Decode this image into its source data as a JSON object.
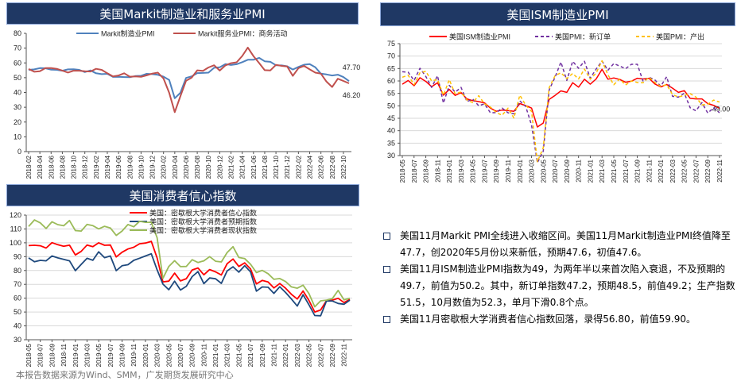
{
  "chart_data": [
    {
      "type": "line",
      "title": "美国Markit制造业和服务业PMI",
      "ylim": [
        0,
        80
      ],
      "yticks": [
        0,
        10,
        20,
        30,
        40,
        50,
        60,
        70,
        80
      ],
      "x_start": "2018-02",
      "xtick_labels": [
        "2018-02",
        "2018-04",
        "2018-06",
        "2018-08",
        "2018-10",
        "2018-12",
        "2019-02",
        "2019-04",
        "2019-06",
        "2019-08",
        "2019-10",
        "2019-12",
        "2020-02",
        "2020-04",
        "2020-06",
        "2020-08",
        "2020-10",
        "2020-12",
        "2021-02",
        "2021-04",
        "2021-06",
        "2021-08",
        "2021-10",
        "2021-12",
        "2022-02",
        "2022-04",
        "2022-06",
        "2022-08",
        "2022-10"
      ],
      "legend_placement": "top-center",
      "series": [
        {
          "name": "Markit制造业PMI",
          "color": "#4f81bd",
          "dash": "",
          "values": [
            55.3,
            55.6,
            56.5,
            56.4,
            55.4,
            55.3,
            54.7,
            55.6,
            55.7,
            55.3,
            53.8,
            54.9,
            53.0,
            52.4,
            52.6,
            50.5,
            50.6,
            50.4,
            50.3,
            51.1,
            51.3,
            52.6,
            52.4,
            51.9,
            50.7,
            48.5,
            36.1,
            39.8,
            49.8,
            50.9,
            53.1,
            53.2,
            53.4,
            56.7,
            57.1,
            59.2,
            58.6,
            59.1,
            60.5,
            62.1,
            62.1,
            63.4,
            61.1,
            60.7,
            58.4,
            58.3,
            57.7,
            55.5,
            57.3,
            58.8,
            59.2,
            57.0,
            52.7,
            52.2,
            51.5,
            52.0,
            50.4,
            47.7
          ],
          "end_label": "47.70"
        },
        {
          "name": "Markit服务业PMI：商务活动",
          "color": "#c0504d",
          "dash": "",
          "values": [
            55.9,
            54.0,
            54.4,
            56.5,
            56.5,
            56.0,
            54.8,
            53.5,
            54.7,
            54.7,
            54.4,
            54.2,
            56.0,
            55.3,
            53.0,
            50.9,
            51.5,
            53.0,
            50.7,
            50.9,
            50.6,
            51.6,
            52.8,
            53.4,
            49.4,
            39.8,
            26.7,
            37.5,
            47.9,
            50.0,
            55.0,
            54.6,
            56.9,
            58.4,
            54.8,
            58.3,
            59.8,
            60.4,
            64.7,
            70.4,
            64.6,
            59.9,
            55.1,
            54.9,
            58.7,
            58.0,
            57.6,
            51.2,
            56.5,
            58.0,
            55.6,
            53.4,
            52.7,
            47.3,
            43.7,
            49.3,
            47.8,
            46.2
          ],
          "end_label": "46.20"
        }
      ]
    },
    {
      "type": "line",
      "title": "美国ISM制造业PMI",
      "ylim": [
        30,
        75
      ],
      "yticks": [
        30,
        35,
        40,
        45,
        50,
        55,
        60,
        65,
        70,
        75
      ],
      "x_start": "2018-05",
      "xtick_labels": [
        "2018-05",
        "2018-07",
        "2018-09",
        "2018-11",
        "2019-01",
        "2019-03",
        "2019-05",
        "2019-07",
        "2019-09",
        "2019-11",
        "2020-01",
        "2020-03",
        "2020-05",
        "2020-07",
        "2020-09",
        "2020-11",
        "2021-01",
        "2021-03",
        "2021-05",
        "2021-07",
        "2021-09",
        "2021-11",
        "2022-01",
        "2022-03",
        "2022-05",
        "2022-07",
        "2022-09",
        "2022-11"
      ],
      "legend_placement": "top-center",
      "series": [
        {
          "name": "美国ISM制造业PMI",
          "color": "#ff0000",
          "dash": "",
          "values": [
            58.7,
            60.2,
            58.1,
            61.3,
            59.8,
            57.7,
            59.3,
            54.3,
            56.6,
            54.2,
            55.3,
            52.8,
            52.1,
            51.7,
            51.2,
            49.1,
            47.8,
            48.3,
            48.1,
            47.8,
            50.9,
            50.1,
            49.1,
            41.5,
            43.1,
            52.6,
            54.2,
            56.0,
            55.4,
            59.3,
            57.5,
            60.7,
            58.7,
            60.8,
            64.7,
            60.7,
            61.2,
            60.6,
            59.5,
            59.9,
            61.1,
            60.8,
            61.1,
            58.8,
            57.6,
            58.6,
            57.1,
            55.4,
            56.1,
            53.0,
            52.8,
            52.8,
            50.9,
            50.2,
            49.0
          ],
          "end_label": "49.00"
        },
        {
          "name": "美国PMI：新订单",
          "color": "#7030a0",
          "dash": "4,3",
          "values": [
            63.7,
            63.5,
            60.2,
            65.1,
            61.8,
            57.4,
            62.1,
            51.1,
            58.2,
            55.5,
            57.4,
            51.7,
            52.7,
            50.0,
            50.8,
            47.2,
            47.3,
            49.1,
            47.2,
            46.8,
            52.0,
            49.8,
            42.2,
            27.1,
            31.8,
            56.4,
            61.5,
            67.6,
            60.2,
            67.9,
            65.1,
            67.9,
            61.1,
            64.8,
            68.0,
            64.3,
            67.0,
            66.0,
            64.9,
            66.7,
            66.7,
            59.8,
            61.5,
            60.4,
            57.9,
            61.7,
            53.8,
            53.5,
            55.1,
            49.2,
            48.0,
            51.3,
            47.1,
            49.2,
            47.2
          ]
        },
        {
          "name": "美国PMI：产出",
          "color": "#ffc000",
          "dash": "4,3",
          "values": [
            61.5,
            62.3,
            58.5,
            63.3,
            63.9,
            60.0,
            60.6,
            54.3,
            60.5,
            54.8,
            55.6,
            52.3,
            51.3,
            54.1,
            50.8,
            49.5,
            47.3,
            46.2,
            49.1,
            45.1,
            54.3,
            50.3,
            47.7,
            27.5,
            33.2,
            57.3,
            62.1,
            63.3,
            61.0,
            63.0,
            60.8,
            64.8,
            60.7,
            63.2,
            68.1,
            62.5,
            58.5,
            60.8,
            58.4,
            60.0,
            59.4,
            59.3,
            61.5,
            59.4,
            57.8,
            58.5,
            54.5,
            53.6,
            54.2,
            54.9,
            53.5,
            50.4,
            50.6,
            52.3,
            51.5
          ]
        }
      ]
    },
    {
      "type": "line",
      "title": "美国消费者信心指数",
      "ylim": [
        30,
        120
      ],
      "yticks": [
        30,
        40,
        50,
        60,
        70,
        80,
        90,
        100,
        110,
        120
      ],
      "x_start": "2018-05",
      "xtick_labels": [
        "2018-05",
        "2018-07",
        "2018-09",
        "2018-11",
        "2019-01",
        "2019-03",
        "2019-05",
        "2019-07",
        "2019-09",
        "2019-11",
        "2020-01",
        "2020-03",
        "2020-05",
        "2020-07",
        "2020-09",
        "2020-11",
        "2021-01",
        "2021-03",
        "2021-05",
        "2021-07",
        "2021-09",
        "2021-11",
        "2022-01",
        "2022-03",
        "2022-05",
        "2022-07",
        "2022-09",
        "2022-11"
      ],
      "legend_placement": "top-center",
      "series": [
        {
          "name": "美国：密歇根大学消费者信心指数",
          "color": "#ff0000",
          "dash": "",
          "values": [
            98.0,
            98.2,
            97.9,
            96.2,
            100.1,
            98.6,
            97.5,
            98.3,
            91.2,
            93.8,
            98.4,
            97.2,
            100.0,
            98.2,
            98.4,
            89.8,
            93.2,
            95.5,
            96.8,
            99.3,
            99.8,
            101.0,
            89.1,
            71.8,
            72.3,
            78.1,
            72.5,
            74.1,
            80.4,
            81.8,
            76.9,
            80.7,
            79.0,
            76.8,
            84.9,
            88.3,
            82.9,
            85.5,
            81.2,
            70.3,
            72.8,
            71.7,
            67.4,
            70.6,
            67.2,
            62.8,
            59.4,
            65.2,
            58.4,
            50.0,
            51.5,
            58.2,
            58.6,
            59.9,
            56.8,
            59.1
          ]
        },
        {
          "name": "美国：密歇根大学消费者预期指数",
          "color": "#1f497d",
          "dash": "",
          "values": [
            89.1,
            86.3,
            87.3,
            87.0,
            90.5,
            89.1,
            88.0,
            87.0,
            79.9,
            84.4,
            88.8,
            87.4,
            93.5,
            89.3,
            90.5,
            79.9,
            83.4,
            84.2,
            87.3,
            88.9,
            90.5,
            92.1,
            80.5,
            70.2,
            66.1,
            72.3,
            65.9,
            68.5,
            75.6,
            79.2,
            70.5,
            74.6,
            74.0,
            70.7,
            79.7,
            82.7,
            78.8,
            83.5,
            79.0,
            65.1,
            68.1,
            67.9,
            63.5,
            68.3,
            64.1,
            59.4,
            54.3,
            62.5,
            55.2,
            47.5,
            47.3,
            58.0,
            58.0,
            56.2,
            55.6,
            58.6
          ]
        },
        {
          "name": "美国：密歇根大学消费者现状指数",
          "color": "#9bbb59",
          "dash": "",
          "values": [
            111.8,
            116.5,
            114.4,
            110.3,
            115.2,
            113.1,
            112.3,
            116.1,
            108.8,
            108.5,
            113.3,
            112.4,
            110.0,
            111.9,
            110.7,
            105.3,
            108.5,
            113.2,
            111.6,
            115.5,
            114.8,
            114.8,
            103.7,
            74.3,
            82.9,
            87.1,
            82.8,
            82.9,
            87.8,
            85.8,
            87.0,
            90.0,
            86.7,
            86.2,
            93.0,
            97.2,
            89.4,
            88.6,
            84.5,
            78.5,
            80.1,
            77.7,
            73.6,
            74.2,
            72.0,
            68.2,
            67.2,
            69.4,
            63.3,
            53.8,
            58.1,
            58.6,
            59.7,
            65.6,
            58.8,
            60.0
          ]
        }
      ]
    }
  ],
  "notes": [
    "美国11月Markit PMI全线进入收缩区间。美国11月Markit制造业PMI终值降至47.7，创2020年5月份以来新低，预期47.6，初值47.6。",
    "美国11月ISM制造业PMI指数为49，为两年半以来首次陷入衰退，不及预期的49.7，前值为50.2。其中，新订单指数47.2，预期48.5，前值49.2；生产指数51.5，10月数值为52.3，单月下滑0.8个点。",
    "美国11月密歇根大学消费者信心指数回落，录得56.80，前值59.90。"
  ],
  "source": "本报告数据来源为Wind、SMM，广发期货发展研究中心"
}
